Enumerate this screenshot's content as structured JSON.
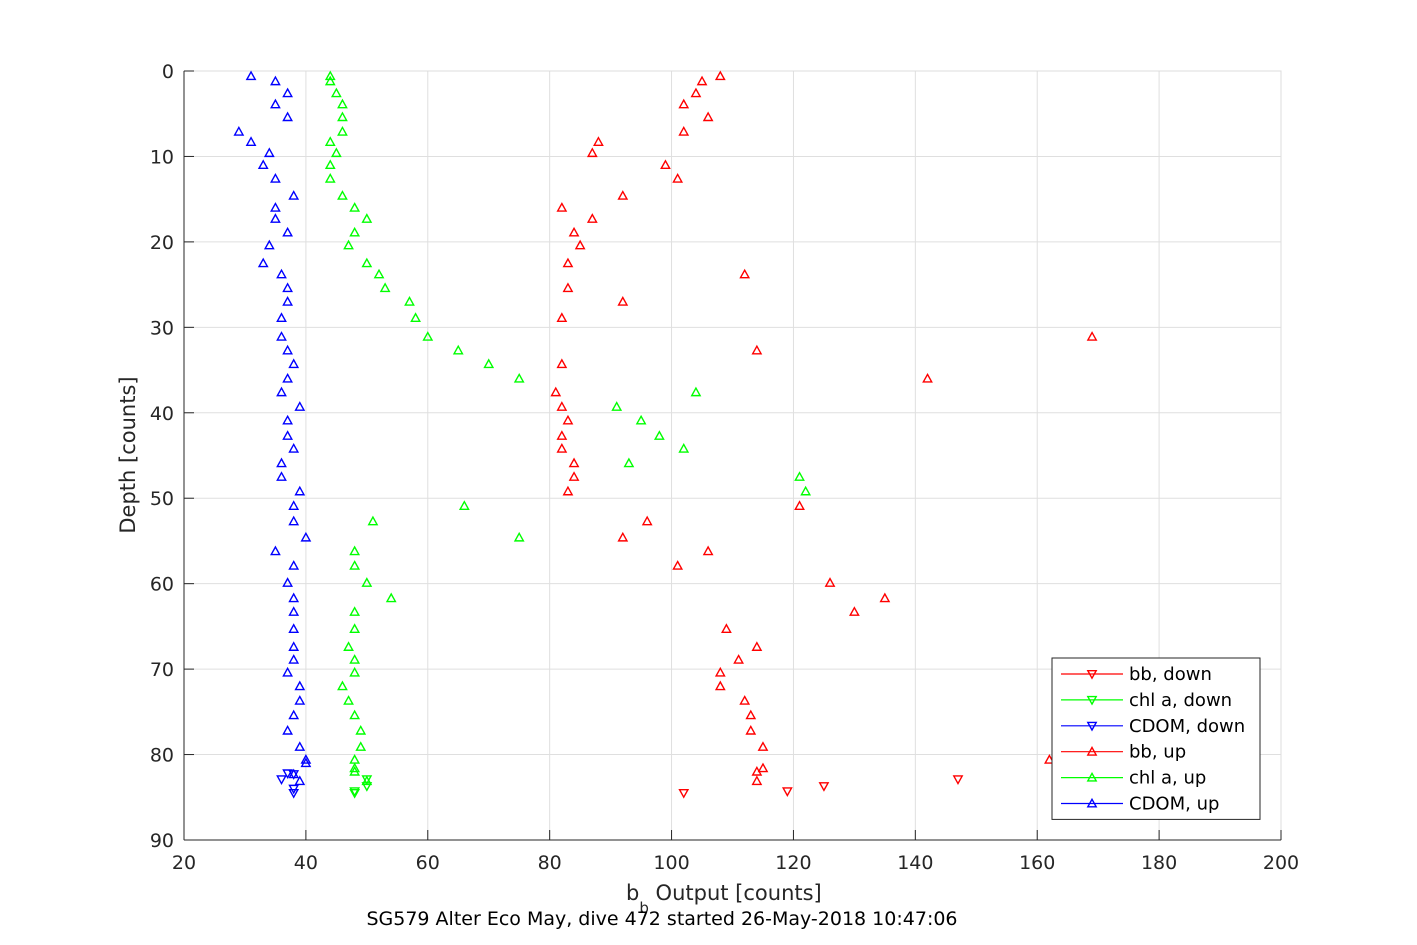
{
  "chart_data": {
    "type": "scatter",
    "xlabel_main": "b",
    "xlabel_sub": "b",
    "xlabel_rest": " Output [counts]",
    "ylabel": "Depth [counts]",
    "caption": "SG579 Alter Eco May, dive 472 started 26-May-2018 10:47:06",
    "xlim": [
      20,
      200
    ],
    "ylim": [
      0,
      90
    ],
    "y_reversed": true,
    "grid": true,
    "legend_placement": "bottom-right",
    "xticks": [
      20,
      40,
      60,
      80,
      100,
      120,
      140,
      160,
      180,
      200
    ],
    "yticks": [
      0,
      10,
      20,
      30,
      40,
      50,
      60,
      70,
      80,
      90
    ],
    "series": [
      {
        "name": "bb, down",
        "color": "#ff0000",
        "marker": "down",
        "points": [
          [
            102,
            84.5
          ],
          [
            119,
            84.3
          ],
          [
            125,
            83.7
          ],
          [
            147,
            82.9
          ]
        ]
      },
      {
        "name": "chl a, down",
        "color": "#00ff00",
        "marker": "down",
        "points": [
          [
            48,
            84.5
          ],
          [
            50,
            83.7
          ],
          [
            50,
            82.9
          ],
          [
            48,
            84.3
          ]
        ]
      },
      {
        "name": "CDOM, down",
        "color": "#0000ff",
        "marker": "down",
        "points": [
          [
            38,
            84.5
          ],
          [
            38,
            84.0
          ],
          [
            36,
            82.9
          ],
          [
            38,
            82.3
          ],
          [
            37,
            82.2
          ]
        ]
      },
      {
        "name": "bb, up",
        "color": "#ff0000",
        "marker": "up",
        "points": [
          [
            108,
            0.6
          ],
          [
            105,
            1.2
          ],
          [
            104,
            2.6
          ],
          [
            102,
            3.9
          ],
          [
            106,
            5.4
          ],
          [
            102,
            7.1
          ],
          [
            88,
            8.3
          ],
          [
            87,
            9.6
          ],
          [
            99,
            11.0
          ],
          [
            101,
            12.6
          ],
          [
            92,
            14.6
          ],
          [
            82,
            16.0
          ],
          [
            87,
            17.3
          ],
          [
            84,
            18.9
          ],
          [
            85,
            20.4
          ],
          [
            83,
            22.5
          ],
          [
            112,
            23.8
          ],
          [
            83,
            25.4
          ],
          [
            92,
            27.0
          ],
          [
            82,
            28.9
          ],
          [
            169,
            31.1
          ],
          [
            114,
            32.7
          ],
          [
            82,
            34.3
          ],
          [
            142,
            36.0
          ],
          [
            81,
            37.6
          ],
          [
            82,
            39.3
          ],
          [
            83,
            40.9
          ],
          [
            82,
            42.7
          ],
          [
            82,
            44.2
          ],
          [
            84,
            45.9
          ],
          [
            84,
            47.5
          ],
          [
            83,
            49.2
          ],
          [
            121,
            50.9
          ],
          [
            96,
            52.7
          ],
          [
            92,
            54.6
          ],
          [
            106,
            56.2
          ],
          [
            101,
            57.9
          ],
          [
            126,
            59.9
          ],
          [
            135,
            61.7
          ],
          [
            130,
            63.3
          ],
          [
            109,
            65.3
          ],
          [
            114,
            67.4
          ],
          [
            111,
            68.9
          ],
          [
            108,
            70.4
          ],
          [
            108,
            72.0
          ],
          [
            112,
            73.7
          ],
          [
            113,
            75.4
          ],
          [
            113,
            77.2
          ],
          [
            115,
            79.1
          ],
          [
            162,
            80.6
          ],
          [
            115,
            81.6
          ],
          [
            114,
            82.0
          ],
          [
            114,
            83.1
          ]
        ]
      },
      {
        "name": "chl a, up",
        "color": "#00ff00",
        "marker": "up",
        "points": [
          [
            44,
            0.6
          ],
          [
            44,
            1.2
          ],
          [
            45,
            2.6
          ],
          [
            46,
            3.9
          ],
          [
            46,
            5.4
          ],
          [
            46,
            7.1
          ],
          [
            44,
            8.3
          ],
          [
            45,
            9.6
          ],
          [
            44,
            11.0
          ],
          [
            44,
            12.6
          ],
          [
            46,
            14.6
          ],
          [
            48,
            16.0
          ],
          [
            50,
            17.3
          ],
          [
            48,
            18.9
          ],
          [
            47,
            20.4
          ],
          [
            50,
            22.5
          ],
          [
            52,
            23.8
          ],
          [
            53,
            25.4
          ],
          [
            57,
            27.0
          ],
          [
            58,
            28.9
          ],
          [
            60,
            31.1
          ],
          [
            65,
            32.7
          ],
          [
            70,
            34.3
          ],
          [
            75,
            36.0
          ],
          [
            104,
            37.6
          ],
          [
            91,
            39.3
          ],
          [
            95,
            40.9
          ],
          [
            98,
            42.7
          ],
          [
            102,
            44.2
          ],
          [
            93,
            45.9
          ],
          [
            121,
            47.5
          ],
          [
            122,
            49.2
          ],
          [
            66,
            50.9
          ],
          [
            51,
            52.7
          ],
          [
            75,
            54.6
          ],
          [
            48,
            56.2
          ],
          [
            48,
            57.9
          ],
          [
            50,
            59.9
          ],
          [
            54,
            61.7
          ],
          [
            48,
            63.3
          ],
          [
            48,
            65.3
          ],
          [
            47,
            67.4
          ],
          [
            48,
            68.9
          ],
          [
            48,
            70.4
          ],
          [
            46,
            72.0
          ],
          [
            47,
            73.7
          ],
          [
            48,
            75.4
          ],
          [
            49,
            77.2
          ],
          [
            49,
            79.1
          ],
          [
            48,
            80.6
          ],
          [
            48,
            81.6
          ],
          [
            48,
            82.0
          ],
          [
            50,
            83.1
          ]
        ]
      },
      {
        "name": "CDOM, up",
        "color": "#0000ff",
        "marker": "up",
        "points": [
          [
            31,
            0.6
          ],
          [
            35,
            1.2
          ],
          [
            37,
            2.6
          ],
          [
            35,
            3.9
          ],
          [
            37,
            5.4
          ],
          [
            29,
            7.1
          ],
          [
            31,
            8.3
          ],
          [
            34,
            9.6
          ],
          [
            33,
            11.0
          ],
          [
            35,
            12.6
          ],
          [
            38,
            14.6
          ],
          [
            35,
            16.0
          ],
          [
            35,
            17.3
          ],
          [
            37,
            18.9
          ],
          [
            34,
            20.4
          ],
          [
            33,
            22.5
          ],
          [
            36,
            23.8
          ],
          [
            37,
            25.4
          ],
          [
            37,
            27.0
          ],
          [
            36,
            28.9
          ],
          [
            36,
            31.1
          ],
          [
            37,
            32.7
          ],
          [
            38,
            34.3
          ],
          [
            37,
            36.0
          ],
          [
            36,
            37.6
          ],
          [
            39,
            39.3
          ],
          [
            37,
            40.9
          ],
          [
            37,
            42.7
          ],
          [
            38,
            44.2
          ],
          [
            36,
            45.9
          ],
          [
            36,
            47.5
          ],
          [
            39,
            49.2
          ],
          [
            38,
            50.9
          ],
          [
            38,
            52.7
          ],
          [
            40,
            54.6
          ],
          [
            35,
            56.2
          ],
          [
            38,
            57.9
          ],
          [
            37,
            59.9
          ],
          [
            38,
            61.7
          ],
          [
            38,
            63.3
          ],
          [
            38,
            65.3
          ],
          [
            38,
            67.4
          ],
          [
            38,
            68.9
          ],
          [
            37,
            70.4
          ],
          [
            39,
            72.0
          ],
          [
            39,
            73.7
          ],
          [
            38,
            75.4
          ],
          [
            37,
            77.2
          ],
          [
            39,
            79.1
          ],
          [
            40,
            80.6
          ],
          [
            40,
            81.0
          ],
          [
            38,
            82.3
          ],
          [
            39,
            83.1
          ]
        ]
      }
    ]
  }
}
